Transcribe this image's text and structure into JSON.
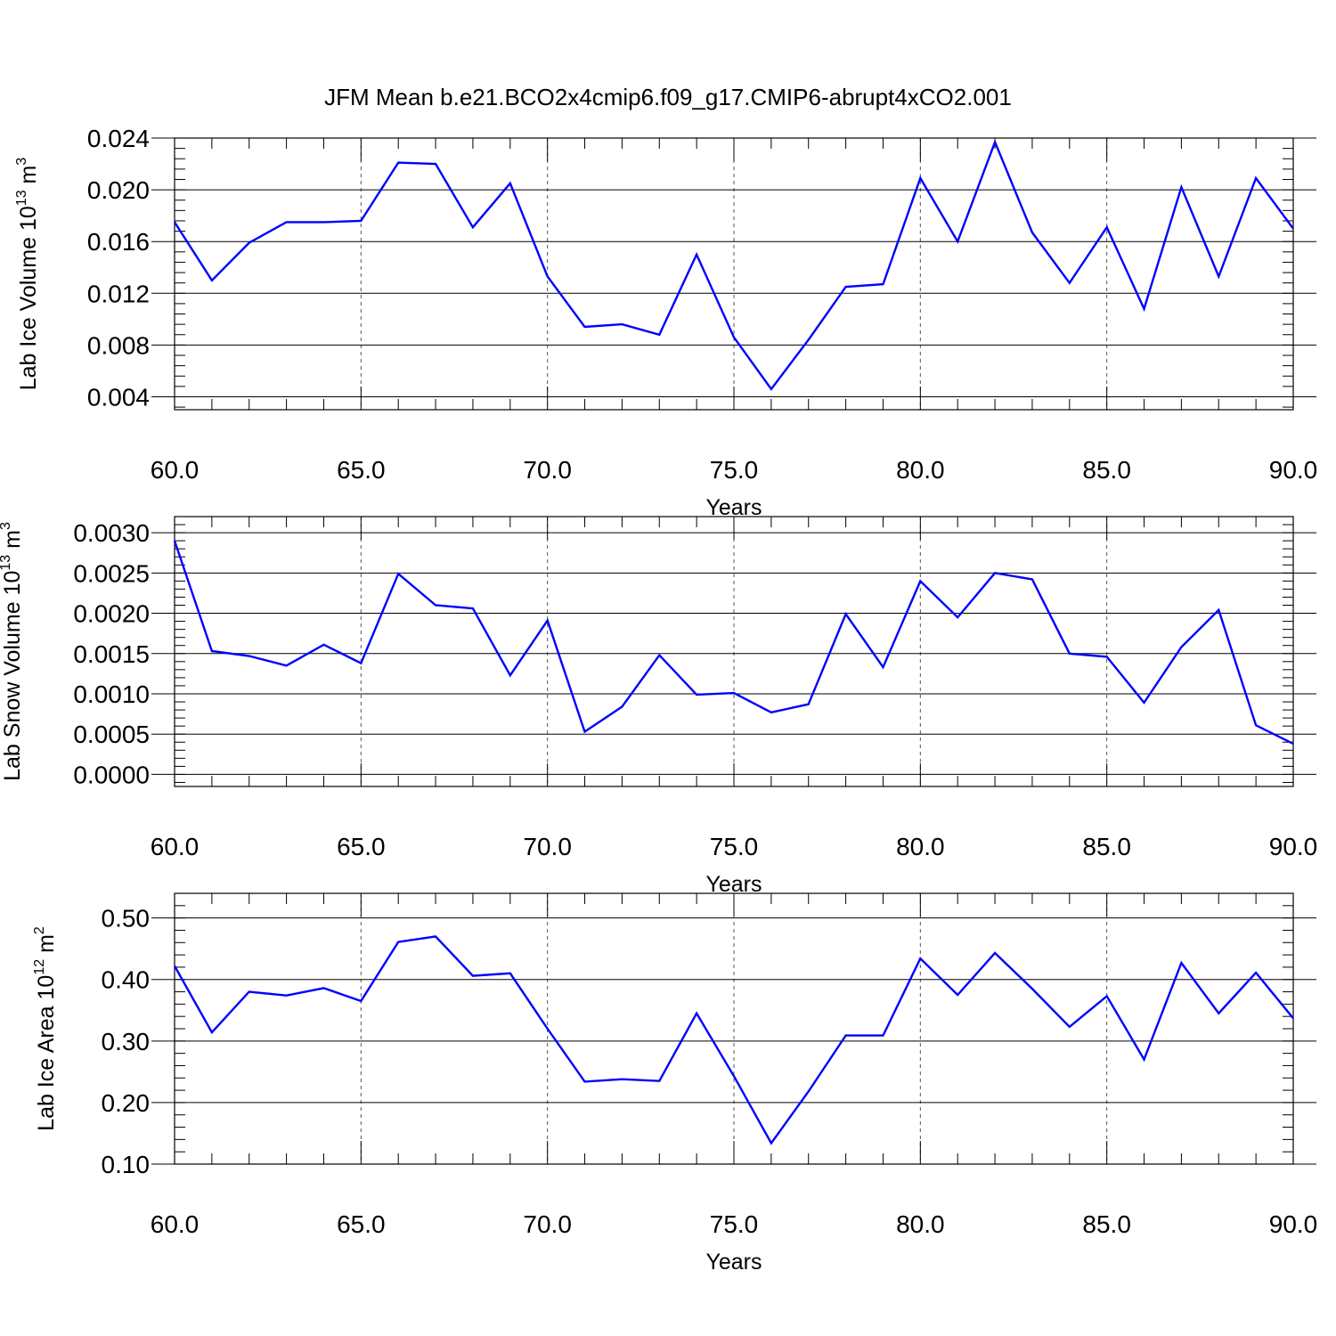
{
  "title": "JFM Mean b.e21.BCO2x4cmip6.f09_g17.CMIP6-abrupt4xCO2.001",
  "line_color": "#0000ff",
  "chart_data": [
    {
      "type": "line",
      "xlabel": "Years",
      "ylabel": "Lab Ice Volume 10",
      "ylabel_sup": "13",
      "ylabel_unit": " m",
      "ylabel_unit_sup": "3",
      "xlim": [
        60,
        90
      ],
      "ylim": [
        0.003,
        0.024
      ],
      "xticks": [
        60,
        65,
        70,
        75,
        80,
        85,
        90
      ],
      "xtick_labels": [
        "60.0",
        "65.0",
        "70.0",
        "75.0",
        "80.0",
        "85.0",
        "90.0"
      ],
      "yticks": [
        0.004,
        0.008,
        0.012,
        0.016,
        0.02,
        0.024
      ],
      "ytick_labels": [
        "0.004",
        "0.008",
        "0.012",
        "0.016",
        "0.020",
        "0.024"
      ],
      "grid": "vertical dashed at major x ticks",
      "x": [
        60,
        61,
        62,
        63,
        64,
        65,
        66,
        67,
        68,
        69,
        70,
        71,
        72,
        73,
        74,
        75,
        76,
        77,
        78,
        79,
        80,
        81,
        82,
        83,
        84,
        85,
        86,
        87,
        88,
        89,
        90
      ],
      "series": [
        {
          "values": [
            0.0175,
            0.013,
            0.0159,
            0.0175,
            0.0175,
            0.0176,
            0.0221,
            0.022,
            0.0171,
            0.0205,
            0.0133,
            0.0094,
            0.0096,
            0.0088,
            0.015,
            0.0086,
            0.0046,
            0.0084,
            0.0125,
            0.0127,
            0.0209,
            0.016,
            0.0237,
            0.0167,
            0.0128,
            0.0171,
            0.0108,
            0.0202,
            0.0133,
            0.0209,
            0.017
          ]
        }
      ]
    },
    {
      "type": "line",
      "xlabel": "Years",
      "ylabel": "Lab Snow Volume 10",
      "ylabel_sup": "13",
      "ylabel_unit": " m",
      "ylabel_unit_sup": "3",
      "xlim": [
        60,
        90
      ],
      "ylim": [
        -0.00015,
        0.0032
      ],
      "xticks": [
        60,
        65,
        70,
        75,
        80,
        85,
        90
      ],
      "xtick_labels": [
        "60.0",
        "65.0",
        "70.0",
        "75.0",
        "80.0",
        "85.0",
        "90.0"
      ],
      "yticks": [
        0,
        0.0005,
        0.001,
        0.0015,
        0.002,
        0.0025,
        0.003
      ],
      "ytick_labels": [
        "0.0000",
        "0.0005",
        "0.0010",
        "0.0015",
        "0.0020",
        "0.0025",
        "0.0030"
      ],
      "grid": "vertical dashed at major x ticks",
      "x": [
        60,
        61,
        62,
        63,
        64,
        65,
        66,
        67,
        68,
        69,
        70,
        71,
        72,
        73,
        74,
        75,
        76,
        77,
        78,
        79,
        80,
        81,
        82,
        83,
        84,
        85,
        86,
        87,
        88,
        89,
        90
      ],
      "series": [
        {
          "values": [
            0.0029,
            0.00153,
            0.00147,
            0.00135,
            0.00161,
            0.00138,
            0.00249,
            0.0021,
            0.00206,
            0.00123,
            0.00191,
            0.00053,
            0.00084,
            0.00148,
            0.00099,
            0.00101,
            0.00077,
            0.00087,
            0.00199,
            0.00133,
            0.0024,
            0.00195,
            0.0025,
            0.00242,
            0.0015,
            0.00146,
            0.00089,
            0.00158,
            0.00204,
            0.00061,
            0.00038
          ]
        }
      ]
    },
    {
      "type": "line",
      "xlabel": "Years",
      "ylabel": "Lab Ice Area 10",
      "ylabel_sup": "12",
      "ylabel_unit": " m",
      "ylabel_unit_sup": "2",
      "xlim": [
        60,
        90
      ],
      "ylim": [
        0.1,
        0.54
      ],
      "xticks": [
        60,
        65,
        70,
        75,
        80,
        85,
        90
      ],
      "xtick_labels": [
        "60.0",
        "65.0",
        "70.0",
        "75.0",
        "80.0",
        "85.0",
        "90.0"
      ],
      "yticks": [
        0.1,
        0.2,
        0.3,
        0.4,
        0.5
      ],
      "ytick_labels": [
        "0.10",
        "0.20",
        "0.30",
        "0.40",
        "0.50"
      ],
      "grid": "vertical dashed at major x ticks",
      "x": [
        60,
        61,
        62,
        63,
        64,
        65,
        66,
        67,
        68,
        69,
        70,
        71,
        72,
        73,
        74,
        75,
        76,
        77,
        78,
        79,
        80,
        81,
        82,
        83,
        84,
        85,
        86,
        87,
        88,
        89,
        90
      ],
      "series": [
        {
          "values": [
            0.422,
            0.314,
            0.38,
            0.374,
            0.386,
            0.365,
            0.461,
            0.47,
            0.406,
            0.41,
            0.32,
            0.234,
            0.238,
            0.235,
            0.345,
            0.243,
            0.134,
            0.218,
            0.309,
            0.309,
            0.434,
            0.375,
            0.443,
            0.385,
            0.323,
            0.373,
            0.27,
            0.427,
            0.345,
            0.411,
            0.337
          ]
        }
      ]
    }
  ]
}
